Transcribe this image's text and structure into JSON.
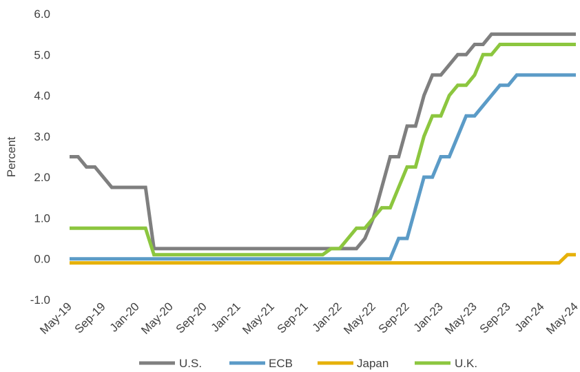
{
  "chart_data": {
    "type": "line",
    "title": "",
    "xlabel": "",
    "ylabel": "Percent",
    "ylim": [
      -1.0,
      6.0
    ],
    "yticks": [
      -1.0,
      0.0,
      1.0,
      2.0,
      3.0,
      4.0,
      5.0,
      6.0
    ],
    "ytick_labels": [
      "-1.0",
      "0.0",
      "1.0",
      "2.0",
      "3.0",
      "4.0",
      "5.0",
      "6.0"
    ],
    "xtick_labels": [
      "May-19",
      "Sep-19",
      "Jan-20",
      "May-20",
      "Sep-20",
      "Jan-21",
      "May-21",
      "Sep-21",
      "Jan-22",
      "May-22",
      "Sep-22",
      "Jan-23",
      "May-23",
      "Sep-23",
      "Jan-24",
      "May-24"
    ],
    "x_months": [
      "May-19",
      "Jun-19",
      "Jul-19",
      "Aug-19",
      "Sep-19",
      "Oct-19",
      "Nov-19",
      "Dec-19",
      "Jan-20",
      "Feb-20",
      "Mar-20",
      "Apr-20",
      "May-20",
      "Jun-20",
      "Jul-20",
      "Aug-20",
      "Sep-20",
      "Oct-20",
      "Nov-20",
      "Dec-20",
      "Jan-21",
      "Feb-21",
      "Mar-21",
      "Apr-21",
      "May-21",
      "Jun-21",
      "Jul-21",
      "Aug-21",
      "Sep-21",
      "Oct-21",
      "Nov-21",
      "Dec-21",
      "Jan-22",
      "Feb-22",
      "Mar-22",
      "Apr-22",
      "May-22",
      "Jun-22",
      "Jul-22",
      "Aug-22",
      "Sep-22",
      "Oct-22",
      "Nov-22",
      "Dec-22",
      "Jan-23",
      "Feb-23",
      "Mar-23",
      "Apr-23",
      "May-23",
      "Jun-23",
      "Jul-23",
      "Aug-23",
      "Sep-23",
      "Oct-23",
      "Nov-23",
      "Dec-23",
      "Jan-24",
      "Feb-24",
      "Mar-24",
      "Apr-24",
      "May-24"
    ],
    "grid": false,
    "legend_position": "bottom",
    "series": [
      {
        "name": "U.S.",
        "color": "#7f7f7f",
        "values": [
          2.5,
          2.5,
          2.25,
          2.25,
          2.0,
          1.75,
          1.75,
          1.75,
          1.75,
          1.75,
          0.25,
          0.25,
          0.25,
          0.25,
          0.25,
          0.25,
          0.25,
          0.25,
          0.25,
          0.25,
          0.25,
          0.25,
          0.25,
          0.25,
          0.25,
          0.25,
          0.25,
          0.25,
          0.25,
          0.25,
          0.25,
          0.25,
          0.25,
          0.25,
          0.25,
          0.5,
          1.0,
          1.75,
          2.5,
          2.5,
          3.25,
          3.25,
          4.0,
          4.5,
          4.5,
          4.75,
          5.0,
          5.0,
          5.25,
          5.25,
          5.5,
          5.5,
          5.5,
          5.5,
          5.5,
          5.5,
          5.5,
          5.5,
          5.5,
          5.5,
          5.5
        ]
      },
      {
        "name": "ECB",
        "color": "#5b9bc7",
        "values": [
          0,
          0,
          0,
          0,
          0,
          0,
          0,
          0,
          0,
          0,
          0,
          0,
          0,
          0,
          0,
          0,
          0,
          0,
          0,
          0,
          0,
          0,
          0,
          0,
          0,
          0,
          0,
          0,
          0,
          0,
          0,
          0,
          0,
          0,
          0,
          0,
          0,
          0,
          0,
          0.5,
          0.5,
          1.25,
          2.0,
          2.0,
          2.5,
          2.5,
          3.0,
          3.5,
          3.5,
          3.75,
          4.0,
          4.25,
          4.25,
          4.5,
          4.5,
          4.5,
          4.5,
          4.5,
          4.5,
          4.5,
          4.5
        ]
      },
      {
        "name": "Japan",
        "color": "#e6b10a",
        "values": [
          -0.1,
          -0.1,
          -0.1,
          -0.1,
          -0.1,
          -0.1,
          -0.1,
          -0.1,
          -0.1,
          -0.1,
          -0.1,
          -0.1,
          -0.1,
          -0.1,
          -0.1,
          -0.1,
          -0.1,
          -0.1,
          -0.1,
          -0.1,
          -0.1,
          -0.1,
          -0.1,
          -0.1,
          -0.1,
          -0.1,
          -0.1,
          -0.1,
          -0.1,
          -0.1,
          -0.1,
          -0.1,
          -0.1,
          -0.1,
          -0.1,
          -0.1,
          -0.1,
          -0.1,
          -0.1,
          -0.1,
          -0.1,
          -0.1,
          -0.1,
          -0.1,
          -0.1,
          -0.1,
          -0.1,
          -0.1,
          -0.1,
          -0.1,
          -0.1,
          -0.1,
          -0.1,
          -0.1,
          -0.1,
          -0.1,
          -0.1,
          -0.1,
          -0.1,
          0.1,
          0.1
        ]
      },
      {
        "name": "U.K.",
        "color": "#8cc63f",
        "values": [
          0.75,
          0.75,
          0.75,
          0.75,
          0.75,
          0.75,
          0.75,
          0.75,
          0.75,
          0.75,
          0.1,
          0.1,
          0.1,
          0.1,
          0.1,
          0.1,
          0.1,
          0.1,
          0.1,
          0.1,
          0.1,
          0.1,
          0.1,
          0.1,
          0.1,
          0.1,
          0.1,
          0.1,
          0.1,
          0.1,
          0.1,
          0.25,
          0.25,
          0.5,
          0.75,
          0.75,
          1.0,
          1.25,
          1.25,
          1.75,
          2.25,
          2.25,
          3.0,
          3.5,
          3.5,
          4.0,
          4.25,
          4.25,
          4.5,
          5.0,
          5.0,
          5.25,
          5.25,
          5.25,
          5.25,
          5.25,
          5.25,
          5.25,
          5.25,
          5.25,
          5.25
        ]
      }
    ]
  }
}
